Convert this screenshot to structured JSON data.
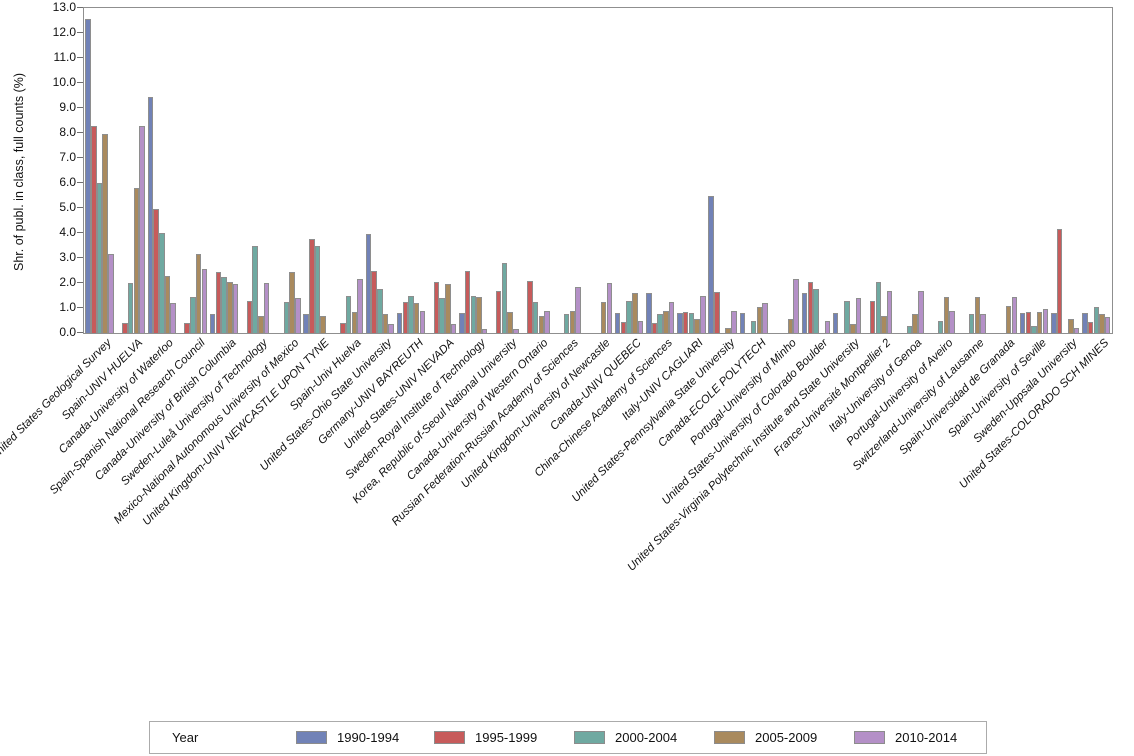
{
  "chart_data": {
    "type": "bar",
    "title": "",
    "ylabel": "Shr. of publ. in class, full counts (%)",
    "xlabel": "",
    "ylim": [
      0,
      13
    ],
    "ytick_step": 1,
    "ytick_format": "one_decimal",
    "grid": false,
    "legend_position": "bottom",
    "legend_title": "Year",
    "categories": [
      "United States-United States Geological Survey",
      "Spain-UNIV HUELVA",
      "Canada-University of Waterloo",
      "Spain-Spanish National Research Council",
      "Canada-University of British Columbia",
      "Sweden-Luleå University of Technology",
      "Mexico-National Autonomous University of Mexico",
      "United Kingdom-UNIV NEWCASTLE UPON TYNE",
      "Spain-Univ Huelva",
      "United States-Ohio State University",
      "Germany-UNIV BAYREUTH",
      "United States-UNIV NEVADA",
      "Sweden-Royal Institute of Technology",
      "Korea, Republic of-Seoul National University",
      "Canada-University of Western Ontario",
      "Russian Federation-Russian Academy of Sciences",
      "United Kingdom-University of Newcastle",
      "Canada-UNIV QUEBEC",
      "China-Chinese Academy of Sciences",
      "Italy-UNIV CAGLIARI",
      "United States-Pennsylvania State University",
      "Canada-ECOLE POLYTECH",
      "Portugal-University of Minho",
      "United States-University of Colorado Boulder",
      "United States-Virginia Polytechnic Institute and State University",
      "France-Université Montpellier 2",
      "Italy-University of Genoa",
      "Portugal-University of Aveiro",
      "Switzerland-University of Lausanne",
      "Spain-Universidad de Granada",
      "Spain-University of Seville",
      "Sweden-Uppsala University",
      "United States-COLORADO SCH MINES"
    ],
    "series": [
      {
        "name": "1990-1994",
        "color": "#7182B7",
        "values": [
          12.55,
          null,
          9.45,
          null,
          0.75,
          null,
          null,
          0.75,
          null,
          3.95,
          0.8,
          null,
          0.8,
          null,
          null,
          null,
          null,
          0.8,
          1.6,
          0.8,
          5.5,
          0.8,
          null,
          1.6,
          0.8,
          null,
          null,
          null,
          null,
          null,
          0.8,
          0.8,
          0.8
        ]
      },
      {
        "name": "1995-1999",
        "color": "#C75B5B",
        "values": [
          8.3,
          0.4,
          4.95,
          0.4,
          2.45,
          1.3,
          null,
          3.75,
          0.4,
          2.5,
          1.25,
          2.05,
          2.5,
          1.7,
          2.1,
          null,
          null,
          0.45,
          0.4,
          0.85,
          1.65,
          null,
          null,
          2.05,
          null,
          1.3,
          null,
          null,
          null,
          null,
          0.85,
          4.15,
          0.45
        ]
      },
      {
        "name": "2000-2004",
        "color": "#6FA9A1",
        "values": [
          6.0,
          2.0,
          4.0,
          1.45,
          2.25,
          3.5,
          1.25,
          3.5,
          1.5,
          1.75,
          1.5,
          1.4,
          1.5,
          2.8,
          1.25,
          0.75,
          null,
          1.3,
          0.75,
          0.8,
          null,
          0.5,
          null,
          1.75,
          1.3,
          2.05,
          0.3,
          0.5,
          0.75,
          null,
          0.3,
          null,
          1.05
        ]
      },
      {
        "name": "2005-2009",
        "color": "#A98A5E",
        "values": [
          7.95,
          5.8,
          2.3,
          3.15,
          2.05,
          0.7,
          2.45,
          0.7,
          0.85,
          0.75,
          1.2,
          1.95,
          1.45,
          0.85,
          0.7,
          0.9,
          1.25,
          1.6,
          0.9,
          0.55,
          0.2,
          1.05,
          0.55,
          null,
          0.35,
          0.7,
          0.75,
          1.45,
          1.45,
          1.1,
          0.85,
          0.55,
          0.75
        ]
      },
      {
        "name": "2010-2014",
        "color": "#B490C7",
        "values": [
          3.15,
          8.3,
          1.2,
          2.55,
          1.95,
          2.0,
          1.4,
          null,
          2.15,
          0.35,
          0.9,
          0.35,
          0.15,
          0.15,
          0.9,
          1.85,
          2.0,
          0.5,
          1.25,
          1.5,
          0.9,
          1.2,
          2.15,
          0.5,
          1.4,
          1.7,
          1.7,
          0.9,
          0.75,
          1.45,
          0.95,
          0.2,
          0.65
        ]
      }
    ]
  },
  "legend": {
    "title": "Year"
  },
  "y_axis": {
    "title": "Shr. of publ. in class, full counts (%)"
  }
}
